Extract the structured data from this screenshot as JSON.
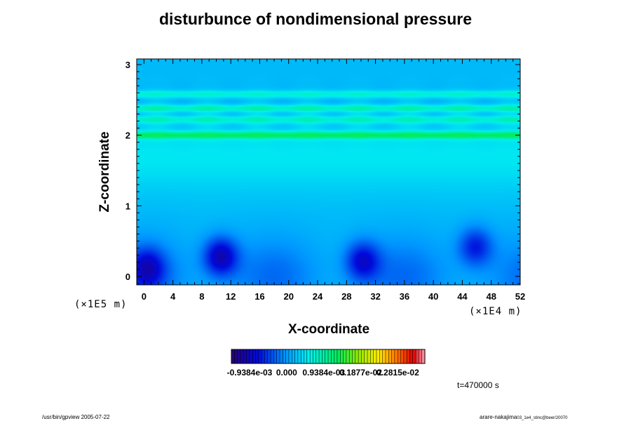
{
  "chart_data": {
    "type": "heatmap",
    "title": "disturbunce of nondimensional pressure",
    "xlabel": "X-coordinate",
    "ylabel": "Z-coordinate",
    "x_unit": "(×1E4 m)",
    "y_unit": "(×1E5 m)",
    "xlim": [
      -1,
      52
    ],
    "ylim": [
      -0.12,
      3.08
    ],
    "x_ticks": [
      "0",
      "4",
      "8",
      "12",
      "16",
      "20",
      "24",
      "28",
      "32",
      "36",
      "40",
      "44",
      "48",
      "52"
    ],
    "x_tick_values": [
      0,
      4,
      8,
      12,
      16,
      20,
      24,
      28,
      32,
      36,
      40,
      44,
      48,
      52
    ],
    "y_ticks": [
      "0",
      "1",
      "2",
      "3"
    ],
    "y_tick_values": [
      0,
      1,
      2,
      3
    ],
    "colorbar": {
      "labels": [
        "-0.9384e-03",
        "0.000",
        "0.9384e-03",
        "0.1877e-02",
        "0.2815e-02"
      ],
      "values": [
        -0.0009384,
        0.0,
        0.0009384,
        0.001877,
        0.002815
      ],
      "min": -0.0014,
      "max": 0.0035
    },
    "field_description": {
      "background": 0.0002,
      "bands": [
        {
          "z": 2.0,
          "value": 0.0011
        },
        {
          "z": 2.22,
          "value": 0.0007
        },
        {
          "z": 2.38,
          "value": 0.0008
        },
        {
          "z": 2.58,
          "value": 0.0007
        }
      ],
      "lows": [
        {
          "x": 10.6,
          "z": 0.28,
          "value": -0.0009
        },
        {
          "x": 30.2,
          "z": 0.22,
          "value": -0.0007
        },
        {
          "x": 45.8,
          "z": 0.42,
          "value": -0.0006
        },
        {
          "x": 0.5,
          "z": 0.12,
          "value": -0.0006
        }
      ]
    }
  },
  "annotation": {
    "time": "t=470000 s"
  },
  "footer": {
    "left": "/usr/bin/gpview 2005-07-22",
    "right": "arare-nakajima",
    "right_sub": "03_1e4_stinc@beer/20070"
  }
}
